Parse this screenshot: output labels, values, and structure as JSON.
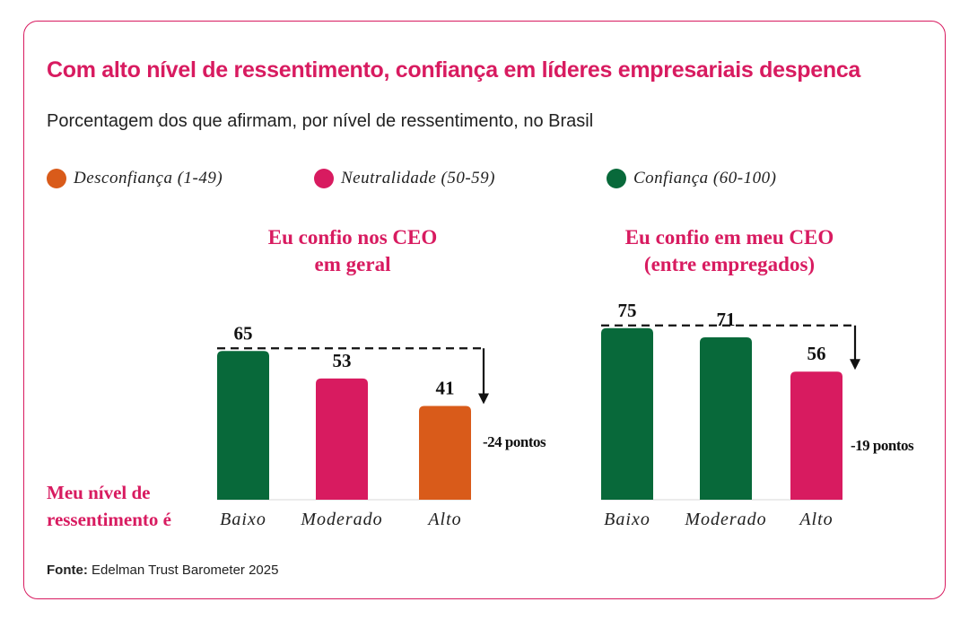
{
  "title": "Com alto nível de ressentimento, confiança em líderes empresariais despenca",
  "subtitle": "Porcentagem dos que afirmam, por nível de ressentimento, no Brasil",
  "legend": [
    {
      "label": "Desconfiança (1-49)",
      "color": "#d95b1a"
    },
    {
      "label": "Neutralidade (50-59)",
      "color": "#d81b60"
    },
    {
      "label": "Confiança (60-100)",
      "color": "#08693a"
    }
  ],
  "row_label_line1": "Meu nível de",
  "row_label_line2": "ressentimento é",
  "footer_label": "Fonte:",
  "footer_text": "Edelman Trust Barometer 2025",
  "colors": {
    "accent": "#d81b60",
    "desconfianca": "#d95b1a",
    "neutralidade": "#d81b60",
    "confianca": "#08693a"
  },
  "chart_data": [
    {
      "type": "bar",
      "title_line1": "Eu confio nos CEO",
      "title_line2": "em geral",
      "categories": [
        "Baixo",
        "Moderado",
        "Alto"
      ],
      "values": [
        65,
        53,
        41
      ],
      "bar_colors": [
        "#08693a",
        "#d81b60",
        "#d95b1a"
      ],
      "annotation": "-24 pontos"
    },
    {
      "type": "bar",
      "title_line1": "Eu confio em meu CEO",
      "title_line2": "(entre empregados)",
      "categories": [
        "Baixo",
        "Moderado",
        "Alto"
      ],
      "values": [
        75,
        71,
        56
      ],
      "bar_colors": [
        "#08693a",
        "#08693a",
        "#d81b60"
      ],
      "annotation": "-19 pontos"
    }
  ]
}
